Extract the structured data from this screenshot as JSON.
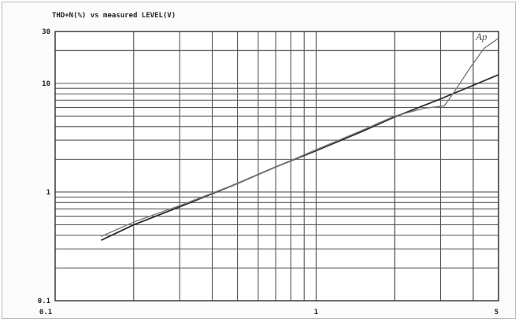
{
  "chart_data": {
    "type": "line",
    "title": "THD+N(%) vs measured LEVEL(V)",
    "xlabel": "",
    "ylabel": "",
    "xscale": "log",
    "yscale": "log",
    "xlim": [
      0.1,
      5
    ],
    "ylim": [
      0.1,
      30
    ],
    "x_ticks": [
      {
        "value": 0.1,
        "label": "0.1"
      },
      {
        "value": 1,
        "label": "1"
      },
      {
        "value": 5,
        "label": "5"
      }
    ],
    "y_ticks": [
      {
        "value": 0.1,
        "label": "0.1"
      },
      {
        "value": 1,
        "label": "1"
      },
      {
        "value": 10,
        "label": "10"
      },
      {
        "value": 30,
        "label": "30"
      }
    ],
    "grid": true,
    "annotations": [
      {
        "text": "Ap",
        "x": 4.3,
        "y": 25
      }
    ],
    "series": [
      {
        "color": "#2f2f2f",
        "x": [
          0.15,
          0.2,
          0.3,
          0.5,
          0.7,
          1.0,
          1.5,
          2.0,
          3.0,
          4.0,
          5.0
        ],
        "y": [
          0.36,
          0.5,
          0.73,
          1.2,
          1.7,
          2.4,
          3.6,
          4.9,
          7.2,
          9.6,
          12
        ]
      },
      {
        "color": "#7a7a7a",
        "x": [
          0.15,
          0.2,
          0.3,
          0.5,
          0.7,
          1.0,
          1.5,
          2.0,
          2.6,
          3.1,
          3.4,
          3.9,
          4.4,
          5.0
        ],
        "y": [
          0.39,
          0.53,
          0.75,
          1.2,
          1.7,
          2.45,
          3.7,
          5.0,
          5.9,
          6.2,
          8.5,
          14,
          21,
          26
        ]
      }
    ]
  }
}
